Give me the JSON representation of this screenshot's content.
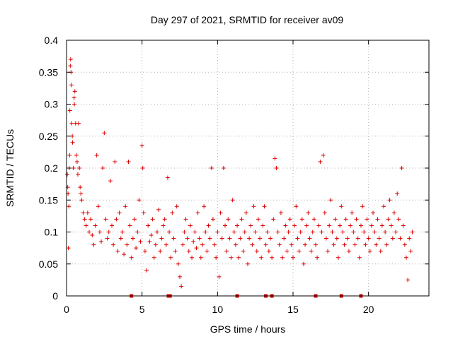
{
  "chart_data": {
    "type": "scatter",
    "title": "Day 297 of 2021, SRMTID for receiver av09",
    "xlabel": "GPS time / hours",
    "ylabel": "SRMTID / TECUs",
    "xlim": [
      0,
      24
    ],
    "ylim": [
      0,
      0.4
    ],
    "x_ticks": [
      0,
      5,
      10,
      15,
      20
    ],
    "y_ticks": [
      0,
      0.05,
      0.1,
      0.15,
      0.2,
      0.25,
      0.3,
      0.35,
      0.4
    ],
    "x_tick_labels": [
      "0",
      "5",
      "10",
      "15",
      "20"
    ],
    "y_tick_labels": [
      "0",
      "0.05",
      "0.1",
      "0.15",
      "0.2",
      "0.25",
      "0.3",
      "0.35",
      "0.4"
    ],
    "grid": true,
    "marker": "plus",
    "color": "#dd0000",
    "x_range_observed": [
      0,
      22.9
    ],
    "series": [
      {
        "name": "SRMTID",
        "points": [
          [
            0.05,
            0.19
          ],
          [
            0.08,
            0.17
          ],
          [
            0.1,
            0.16
          ],
          [
            0.12,
            0.075
          ],
          [
            0.15,
            0.14
          ],
          [
            0.18,
            0.2
          ],
          [
            0.2,
            0.22
          ],
          [
            0.22,
            0.29
          ],
          [
            0.25,
            0.36
          ],
          [
            0.27,
            0.37
          ],
          [
            0.3,
            0.35
          ],
          [
            0.32,
            0.33
          ],
          [
            0.35,
            0.27
          ],
          [
            0.38,
            0.25
          ],
          [
            0.4,
            0.24
          ],
          [
            0.45,
            0.2
          ],
          [
            0.5,
            0.31
          ],
          [
            0.52,
            0.3
          ],
          [
            0.55,
            0.32
          ],
          [
            0.6,
            0.27
          ],
          [
            0.65,
            0.22
          ],
          [
            0.7,
            0.21
          ],
          [
            0.75,
            0.19
          ],
          [
            0.8,
            0.27
          ],
          [
            0.85,
            0.2
          ],
          [
            0.9,
            0.17
          ],
          [
            0.95,
            0.16
          ],
          [
            1.0,
            0.15
          ],
          [
            1.1,
            0.13
          ],
          [
            1.2,
            0.12
          ],
          [
            1.3,
            0.11
          ],
          [
            1.4,
            0.13
          ],
          [
            1.5,
            0.1
          ],
          [
            1.6,
            0.12
          ],
          [
            1.7,
            0.095
          ],
          [
            1.8,
            0.08
          ],
          [
            1.9,
            0.11
          ],
          [
            2.0,
            0.22
          ],
          [
            2.1,
            0.14
          ],
          [
            2.2,
            0.1
          ],
          [
            2.3,
            0.085
          ],
          [
            2.4,
            0.2
          ],
          [
            2.5,
            0.255
          ],
          [
            2.6,
            0.12
          ],
          [
            2.7,
            0.09
          ],
          [
            2.8,
            0.1
          ],
          [
            2.9,
            0.18
          ],
          [
            3.0,
            0.11
          ],
          [
            3.1,
            0.08
          ],
          [
            3.2,
            0.21
          ],
          [
            3.3,
            0.12
          ],
          [
            3.4,
            0.07
          ],
          [
            3.5,
            0.13
          ],
          [
            3.6,
            0.09
          ],
          [
            3.7,
            0.1
          ],
          [
            3.8,
            0.065
          ],
          [
            3.9,
            0.14
          ],
          [
            4.0,
            0.08
          ],
          [
            4.1,
            0.21
          ],
          [
            4.2,
            0.11
          ],
          [
            4.3,
            0.06
          ],
          [
            4.4,
            0.09
          ],
          [
            4.5,
            0.12
          ],
          [
            4.6,
            0.075
          ],
          [
            4.7,
            0.1
          ],
          [
            4.8,
            0.15
          ],
          [
            4.9,
            0.085
          ],
          [
            5.0,
            0.235
          ],
          [
            5.05,
            0.2
          ],
          [
            5.1,
            0.13
          ],
          [
            5.2,
            0.07
          ],
          [
            5.3,
            0.04
          ],
          [
            5.4,
            0.11
          ],
          [
            5.5,
            0.085
          ],
          [
            5.6,
            0.095
          ],
          [
            5.7,
            0.12
          ],
          [
            5.8,
            0.06
          ],
          [
            5.9,
            0.08
          ],
          [
            6.0,
            0.1
          ],
          [
            6.1,
            0.135
          ],
          [
            6.2,
            0.07
          ],
          [
            6.3,
            0.09
          ],
          [
            6.4,
            0.11
          ],
          [
            6.5,
            0.12
          ],
          [
            6.6,
            0.08
          ],
          [
            6.7,
            0.185
          ],
          [
            6.8,
            0.1
          ],
          [
            6.9,
            0.06
          ],
          [
            7.0,
            0.13
          ],
          [
            7.1,
            0.09
          ],
          [
            7.2,
            0.07
          ],
          [
            7.3,
            0.14
          ],
          [
            7.4,
            0.05
          ],
          [
            7.5,
            0.03
          ],
          [
            7.6,
            0.015
          ],
          [
            7.7,
            0.08
          ],
          [
            7.8,
            0.1
          ],
          [
            7.9,
            0.12
          ],
          [
            8.0,
            0.09
          ],
          [
            8.1,
            0.07
          ],
          [
            8.2,
            0.11
          ],
          [
            8.3,
            0.06
          ],
          [
            8.4,
            0.085
          ],
          [
            8.5,
            0.1
          ],
          [
            8.6,
            0.075
          ],
          [
            8.7,
            0.13
          ],
          [
            8.8,
            0.09
          ],
          [
            8.9,
            0.06
          ],
          [
            9.0,
            0.08
          ],
          [
            9.1,
            0.14
          ],
          [
            9.2,
            0.1
          ],
          [
            9.3,
            0.07
          ],
          [
            9.4,
            0.11
          ],
          [
            9.5,
            0.09
          ],
          [
            9.6,
            0.2
          ],
          [
            9.7,
            0.12
          ],
          [
            9.8,
            0.08
          ],
          [
            9.9,
            0.06
          ],
          [
            10.0,
            0.1
          ],
          [
            10.1,
            0.03
          ],
          [
            10.2,
            0.13
          ],
          [
            10.3,
            0.09
          ],
          [
            10.4,
            0.2
          ],
          [
            10.5,
            0.11
          ],
          [
            10.6,
            0.07
          ],
          [
            10.7,
            0.12
          ],
          [
            10.8,
            0.09
          ],
          [
            10.9,
            0.06
          ],
          [
            11.0,
            0.15
          ],
          [
            11.1,
            0.1
          ],
          [
            11.2,
            0.08
          ],
          [
            11.3,
            0.11
          ],
          [
            11.4,
            0.06
          ],
          [
            11.5,
            0.09
          ],
          [
            11.6,
            0.12
          ],
          [
            11.7,
            0.07
          ],
          [
            11.8,
            0.1
          ],
          [
            11.9,
            0.13
          ],
          [
            12.0,
            0.05
          ],
          [
            12.1,
            0.09
          ],
          [
            12.2,
            0.11
          ],
          [
            12.3,
            0.08
          ],
          [
            12.4,
            0.14
          ],
          [
            12.5,
            0.1
          ],
          [
            12.6,
            0.07
          ],
          [
            12.7,
            0.12
          ],
          [
            12.8,
            0.09
          ],
          [
            12.9,
            0.06
          ],
          [
            13.0,
            0.11
          ],
          [
            13.1,
            0.14
          ],
          [
            13.2,
            0.08
          ],
          [
            13.3,
            0.1
          ],
          [
            13.4,
            0.07
          ],
          [
            13.5,
            0.09
          ],
          [
            13.6,
            0.06
          ],
          [
            13.7,
            0.12
          ],
          [
            13.8,
            0.215
          ],
          [
            13.9,
            0.2
          ],
          [
            14.0,
            0.1
          ],
          [
            14.1,
            0.08
          ],
          [
            14.2,
            0.13
          ],
          [
            14.3,
            0.06
          ],
          [
            14.4,
            0.09
          ],
          [
            14.5,
            0.11
          ],
          [
            14.6,
            0.07
          ],
          [
            14.7,
            0.1
          ],
          [
            14.8,
            0.12
          ],
          [
            14.9,
            0.08
          ],
          [
            15.0,
            0.06
          ],
          [
            15.1,
            0.11
          ],
          [
            15.2,
            0.14
          ],
          [
            15.3,
            0.09
          ],
          [
            15.4,
            0.07
          ],
          [
            15.5,
            0.1
          ],
          [
            15.6,
            0.12
          ],
          [
            15.7,
            0.05
          ],
          [
            15.8,
            0.08
          ],
          [
            15.9,
            0.11
          ],
          [
            16.0,
            0.13
          ],
          [
            16.1,
            0.09
          ],
          [
            16.2,
            0.07
          ],
          [
            16.3,
            0.1
          ],
          [
            16.4,
            0.12
          ],
          [
            16.5,
            0.08
          ],
          [
            16.6,
            0.06
          ],
          [
            16.7,
            0.11
          ],
          [
            16.8,
            0.21
          ],
          [
            16.9,
            0.1
          ],
          [
            17.0,
            0.22
          ],
          [
            17.1,
            0.13
          ],
          [
            17.2,
            0.09
          ],
          [
            17.3,
            0.07
          ],
          [
            17.4,
            0.11
          ],
          [
            17.5,
            0.15
          ],
          [
            17.6,
            0.1
          ],
          [
            17.7,
            0.08
          ],
          [
            17.8,
            0.12
          ],
          [
            17.9,
            0.09
          ],
          [
            18.0,
            0.06
          ],
          [
            18.1,
            0.11
          ],
          [
            18.2,
            0.14
          ],
          [
            18.3,
            0.1
          ],
          [
            18.4,
            0.08
          ],
          [
            18.5,
            0.12
          ],
          [
            18.6,
            0.09
          ],
          [
            18.7,
            0.07
          ],
          [
            18.8,
            0.11
          ],
          [
            18.9,
            0.13
          ],
          [
            19.0,
            0.1
          ],
          [
            19.1,
            0.08
          ],
          [
            19.2,
            0.12
          ],
          [
            19.3,
            0.09
          ],
          [
            19.4,
            0.06
          ],
          [
            19.5,
            0.11
          ],
          [
            19.6,
            0.14
          ],
          [
            19.7,
            0.1
          ],
          [
            19.8,
            0.08
          ],
          [
            19.9,
            0.12
          ],
          [
            20.0,
            0.09
          ],
          [
            20.1,
            0.07
          ],
          [
            20.2,
            0.11
          ],
          [
            20.3,
            0.13
          ],
          [
            20.4,
            0.1
          ],
          [
            20.5,
            0.08
          ],
          [
            20.6,
            0.12
          ],
          [
            20.7,
            0.09
          ],
          [
            20.8,
            0.07
          ],
          [
            20.9,
            0.11
          ],
          [
            21.0,
            0.14
          ],
          [
            21.1,
            0.1
          ],
          [
            21.2,
            0.08
          ],
          [
            21.3,
            0.12
          ],
          [
            21.4,
            0.15
          ],
          [
            21.5,
            0.11
          ],
          [
            21.6,
            0.09
          ],
          [
            21.7,
            0.13
          ],
          [
            21.8,
            0.1
          ],
          [
            21.9,
            0.16
          ],
          [
            22.0,
            0.12
          ],
          [
            22.1,
            0.09
          ],
          [
            22.2,
            0.2
          ],
          [
            22.3,
            0.11
          ],
          [
            22.4,
            0.08
          ],
          [
            22.5,
            0.06
          ],
          [
            22.6,
            0.025
          ],
          [
            22.7,
            0.09
          ],
          [
            22.8,
            0.07
          ],
          [
            22.9,
            0.1
          ]
        ]
      }
    ],
    "baseline_markers": {
      "y": 0,
      "x": [
        4.3,
        6.75,
        6.85,
        11.3,
        13.2,
        13.6,
        16.5,
        18.2,
        19.5
      ]
    }
  }
}
